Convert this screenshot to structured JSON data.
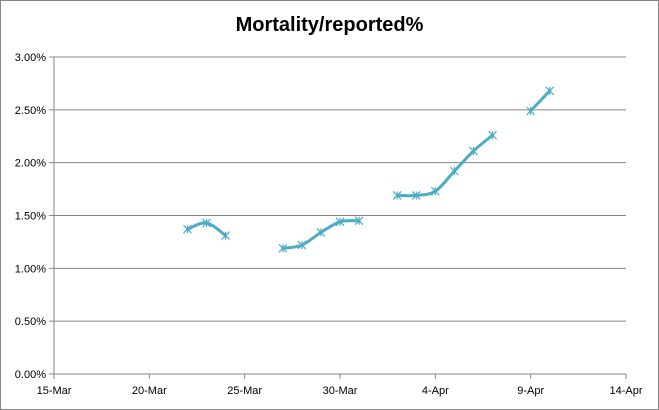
{
  "chart_data": {
    "type": "line",
    "title": "Mortality/reported%",
    "xlabel": "",
    "ylabel": "",
    "x_axis": {
      "type": "date",
      "min": "2020-03-15",
      "max": "2020-04-14",
      "tick_dates": [
        "2020-03-15",
        "2020-03-20",
        "2020-03-25",
        "2020-03-30",
        "2020-04-04",
        "2020-04-09",
        "2020-04-14"
      ],
      "tick_labels": [
        "15-Mar",
        "20-Mar",
        "25-Mar",
        "30-Mar",
        "4-Apr",
        "9-Apr",
        "14-Apr"
      ]
    },
    "y_axis": {
      "min": 0,
      "max": 0.03,
      "tick_values": [
        0,
        0.005,
        0.01,
        0.015,
        0.02,
        0.025,
        0.03
      ],
      "tick_labels": [
        "0.00%",
        "0.50%",
        "1.00%",
        "1.50%",
        "2.00%",
        "2.50%",
        "3.00%"
      ]
    },
    "grid": "horizontal",
    "legend": "none",
    "series": [
      {
        "color": "#4bacc6",
        "marker": "asterisk",
        "smooth": true,
        "points": [
          {
            "x": "2020-03-22",
            "y": 0.0137
          },
          {
            "x": "2020-03-23",
            "y": 0.0143
          },
          {
            "x": "2020-03-24",
            "y": 0.0131
          },
          {
            "x": "2020-03-25",
            "y": null
          },
          {
            "x": "2020-03-26",
            "y": null
          },
          {
            "x": "2020-03-27",
            "y": 0.0119
          },
          {
            "x": "2020-03-28",
            "y": 0.0122
          },
          {
            "x": "2020-03-29",
            "y": 0.0134
          },
          {
            "x": "2020-03-30",
            "y": 0.0144
          },
          {
            "x": "2020-03-31",
            "y": 0.0145
          },
          {
            "x": "2020-04-01",
            "y": null
          },
          {
            "x": "2020-04-02",
            "y": 0.0169
          },
          {
            "x": "2020-04-03",
            "y": 0.0169
          },
          {
            "x": "2020-04-04",
            "y": 0.0173
          },
          {
            "x": "2020-04-05",
            "y": 0.0192
          },
          {
            "x": "2020-04-06",
            "y": 0.0211
          },
          {
            "x": "2020-04-07",
            "y": 0.0226
          },
          {
            "x": "2020-04-08",
            "y": null
          },
          {
            "x": "2020-04-09",
            "y": 0.0249
          },
          {
            "x": "2020-04-10",
            "y": 0.0268
          }
        ]
      }
    ]
  }
}
